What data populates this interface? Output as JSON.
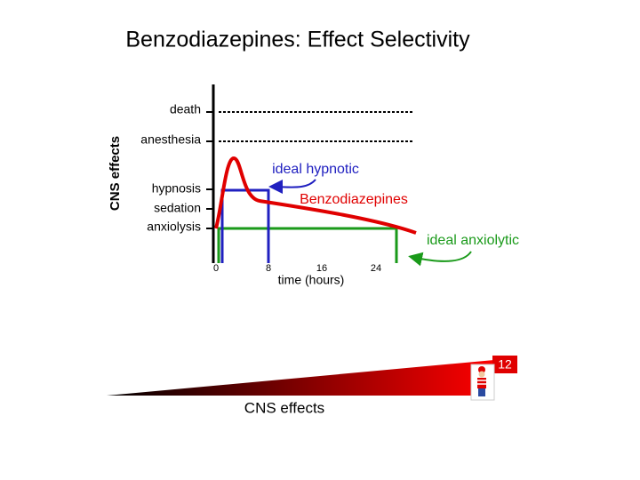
{
  "header": {
    "title": "Benzodiazepines: Effect Selectivity"
  },
  "diagram": {
    "y_axis_label": "CNS effects",
    "levels": [
      "death",
      "anesthesia",
      "hypnosis",
      "sedation",
      "anxiolysis"
    ],
    "x_ticks": [
      "0",
      "8",
      "16",
      "24"
    ],
    "x_axis_label": "time (hours)",
    "annotations": {
      "ideal_hypnotic": "ideal hypnotic",
      "drug": "Benzodiazepines",
      "ideal_anxiolytic": "ideal anxiolytic"
    }
  },
  "footer": {
    "wedge_label": "CNS effects",
    "page_number": "12"
  }
}
